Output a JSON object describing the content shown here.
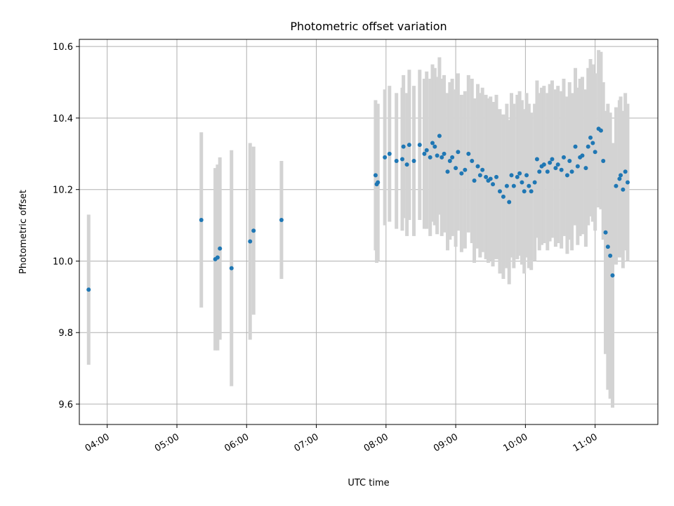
{
  "chart_data": {
    "type": "scatter",
    "title": "Photometric offset variation",
    "xlabel": "UTC time",
    "ylabel": "Photometric offset",
    "x_ticks": [
      "04:00",
      "05:00",
      "06:00",
      "07:00",
      "08:00",
      "09:00",
      "10:00",
      "11:00"
    ],
    "y_ticks": [
      "9.6",
      "9.8",
      "10.0",
      "10.2",
      "10.4",
      "10.6"
    ],
    "xlim": [
      "03:36",
      "11:54"
    ],
    "ylim": [
      9.543,
      10.62
    ],
    "grid": true,
    "colors": {
      "point": "#1f77b4",
      "errorbar": "#d3d3d3",
      "grid": "#b0b0b0"
    },
    "series": [
      {
        "x": [
          "03:44",
          "05:21",
          "05:33",
          "05:35",
          "05:37",
          "05:47",
          "06:03",
          "06:06",
          "06:30",
          "07:51",
          "07:52",
          "07:53",
          "07:59",
          "08:03",
          "08:09",
          "08:14",
          "08:15",
          "08:18",
          "08:20",
          "08:24",
          "08:29",
          "08:33",
          "08:35",
          "08:38",
          "08:40",
          "08:42",
          "08:44",
          "08:46",
          "08:48",
          "08:50",
          "08:53",
          "08:55",
          "08:57",
          "09:00",
          "09:02",
          "09:05",
          "09:08",
          "09:11",
          "09:14",
          "09:16",
          "09:19",
          "09:21",
          "09:23",
          "09:26",
          "09:28",
          "09:30",
          "09:32",
          "09:35",
          "09:38",
          "09:41",
          "09:44",
          "09:46",
          "09:48",
          "09:50",
          "09:53",
          "09:55",
          "09:57",
          "09:59",
          "10:01",
          "10:03",
          "10:05",
          "10:08",
          "10:10",
          "10:12",
          "10:14",
          "10:16",
          "10:19",
          "10:21",
          "10:23",
          "10:26",
          "10:28",
          "10:31",
          "10:33",
          "10:36",
          "10:38",
          "10:40",
          "10:43",
          "10:45",
          "10:47",
          "10:49",
          "10:52",
          "10:54",
          "10:56",
          "10:58",
          "11:00",
          "11:03",
          "11:05",
          "11:07",
          "11:09",
          "11:11",
          "11:13",
          "11:15",
          "11:18",
          "11:21",
          "11:22",
          "11:24",
          "11:26",
          "11:28"
        ],
        "y": [
          9.92,
          10.115,
          10.005,
          10.01,
          10.035,
          9.98,
          10.055,
          10.085,
          10.115,
          10.24,
          10.215,
          10.22,
          10.29,
          10.3,
          10.28,
          10.285,
          10.32,
          10.27,
          10.325,
          10.28,
          10.325,
          10.3,
          10.31,
          10.29,
          10.33,
          10.32,
          10.295,
          10.35,
          10.29,
          10.3,
          10.25,
          10.28,
          10.29,
          10.26,
          10.305,
          10.245,
          10.255,
          10.3,
          10.28,
          10.225,
          10.265,
          10.24,
          10.255,
          10.235,
          10.225,
          10.23,
          10.215,
          10.235,
          10.195,
          10.18,
          10.21,
          10.165,
          10.24,
          10.21,
          10.235,
          10.245,
          10.22,
          10.195,
          10.24,
          10.21,
          10.195,
          10.22,
          10.285,
          10.25,
          10.265,
          10.27,
          10.25,
          10.275,
          10.285,
          10.26,
          10.27,
          10.255,
          10.29,
          10.24,
          10.28,
          10.25,
          10.32,
          10.265,
          10.29,
          10.295,
          10.26,
          10.32,
          10.345,
          10.33,
          10.305,
          10.37,
          10.365,
          10.28,
          10.08,
          10.04,
          10.015,
          9.96,
          10.21,
          10.23,
          10.24,
          10.2,
          10.25,
          10.22
        ],
        "err": [
          0.21,
          0.245,
          0.255,
          0.26,
          0.255,
          0.33,
          0.275,
          0.235,
          0.165,
          0.21,
          0.22,
          0.22,
          0.19,
          0.19,
          0.19,
          0.2,
          0.2,
          0.2,
          0.21,
          0.21,
          0.21,
          0.21,
          0.22,
          0.22,
          0.22,
          0.22,
          0.22,
          0.22,
          0.22,
          0.22,
          0.22,
          0.22,
          0.22,
          0.22,
          0.22,
          0.22,
          0.22,
          0.22,
          0.23,
          0.23,
          0.23,
          0.23,
          0.23,
          0.23,
          0.23,
          0.23,
          0.23,
          0.23,
          0.23,
          0.23,
          0.23,
          0.23,
          0.23,
          0.23,
          0.23,
          0.23,
          0.23,
          0.23,
          0.23,
          0.23,
          0.22,
          0.22,
          0.22,
          0.22,
          0.22,
          0.22,
          0.22,
          0.22,
          0.22,
          0.22,
          0.22,
          0.22,
          0.22,
          0.22,
          0.22,
          0.22,
          0.22,
          0.22,
          0.22,
          0.22,
          0.22,
          0.22,
          0.22,
          0.22,
          0.22,
          0.22,
          0.22,
          0.22,
          0.34,
          0.4,
          0.4,
          0.37,
          0.22,
          0.22,
          0.22,
          0.22,
          0.22,
          0.22
        ]
      }
    ]
  }
}
